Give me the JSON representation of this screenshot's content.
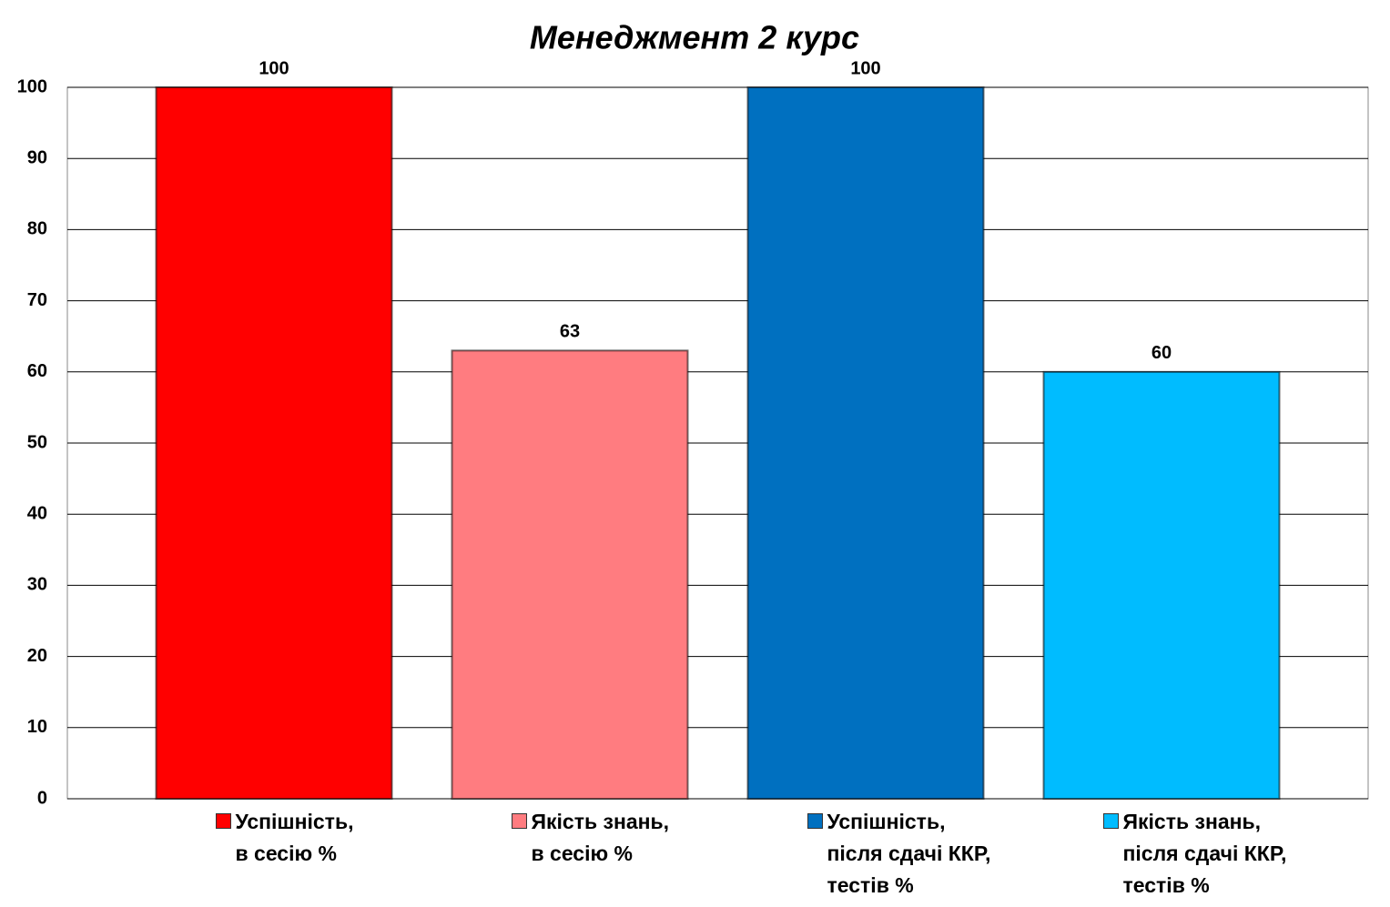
{
  "chart_data": {
    "type": "bar",
    "title": "Менеджмент 2 курс",
    "series": [
      {
        "name": "Успішність,\nв сесію %",
        "color": "#ff0000",
        "values": [
          100
        ]
      },
      {
        "name": "Якість знань,\nв сесію %",
        "color": "#ff7c80",
        "values": [
          63
        ]
      },
      {
        "name": "Успішність,\nпісля сдачі ККР,\nтестів %",
        "color": "#0070c0",
        "values": [
          100
        ]
      },
      {
        "name": "Якість знань,\nпісля сдачі ККР,\nтестів %",
        "color": "#00bcff",
        "values": [
          60
        ]
      }
    ],
    "ylim": [
      0,
      100
    ],
    "yticks": [
      0,
      10,
      20,
      30,
      40,
      50,
      60,
      70,
      80,
      90,
      100
    ],
    "grid": true
  }
}
